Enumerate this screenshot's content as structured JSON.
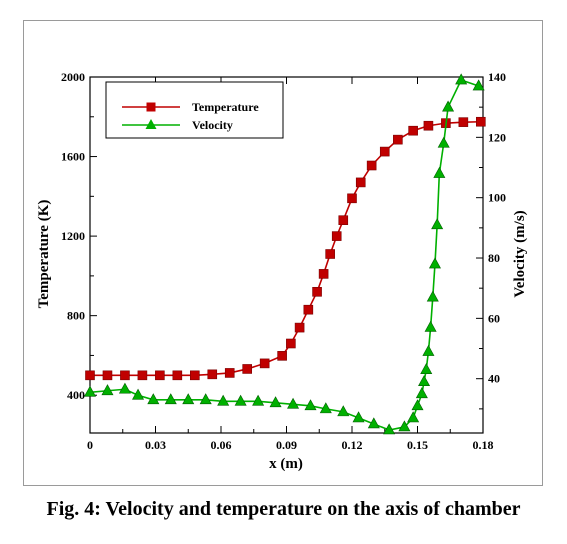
{
  "caption": "Fig. 4: Velocity and temperature on the axis of chamber",
  "chart_data": {
    "type": "line",
    "xlabel": "x (m)",
    "ylabel_left": "Temperature (K)",
    "ylabel_right": "Velocity (m/s)",
    "xlim": [
      0,
      0.18
    ],
    "ylim_left": [
      210,
      2000
    ],
    "ylim_right": [
      22,
      140
    ],
    "xticks": [
      "0",
      "0.03",
      "0.06",
      "0.09",
      "0.12",
      "0.15",
      "0.18"
    ],
    "yticks_left": [
      "400",
      "800",
      "1200",
      "1600",
      "2000"
    ],
    "yticks_right": [
      "40",
      "60",
      "80",
      "100",
      "120",
      "140"
    ],
    "grid": false,
    "legend_position": "top-left",
    "series": [
      {
        "name": "Temperature",
        "axis": "left",
        "color": "#c00000",
        "marker": "square",
        "x": [
          0,
          0.008,
          0.016,
          0.024,
          0.032,
          0.04,
          0.048,
          0.056,
          0.064,
          0.072,
          0.08,
          0.088,
          0.092,
          0.096,
          0.1,
          0.104,
          0.107,
          0.11,
          0.113,
          0.116,
          0.12,
          0.124,
          0.129,
          0.135,
          0.141,
          0.148,
          0.155,
          0.163,
          0.171,
          0.179
        ],
        "y": [
          500,
          500,
          500,
          500,
          500,
          500,
          500,
          505,
          512,
          532,
          560,
          598,
          660,
          740,
          830,
          920,
          1010,
          1110,
          1200,
          1280,
          1390,
          1470,
          1555,
          1625,
          1685,
          1730,
          1755,
          1768,
          1773,
          1775
        ]
      },
      {
        "name": "Velocity",
        "axis": "right",
        "color": "#00b000",
        "marker": "triangle",
        "x": [
          0,
          0.008,
          0.016,
          0.022,
          0.029,
          0.037,
          0.045,
          0.053,
          0.061,
          0.069,
          0.077,
          0.085,
          0.093,
          0.101,
          0.108,
          0.116,
          0.123,
          0.13,
          0.137,
          0.144,
          0.148,
          0.15,
          0.152,
          0.153,
          0.154,
          0.155,
          0.156,
          0.157,
          0.158,
          0.159,
          0.16,
          0.162,
          0.164,
          0.17,
          0.178
        ],
        "y": [
          35.5,
          36,
          36.5,
          34.5,
          33,
          33,
          33,
          33,
          32.5,
          32.5,
          32.5,
          32,
          31.5,
          31,
          30,
          29,
          27,
          25,
          23,
          24,
          27,
          31,
          35,
          39,
          43,
          49,
          57,
          67,
          78,
          91,
          108,
          118,
          130,
          139,
          137
        ]
      }
    ]
  }
}
